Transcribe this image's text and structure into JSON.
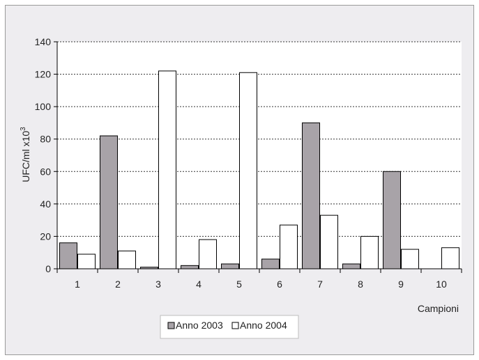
{
  "chart_data": {
    "type": "bar",
    "categories": [
      "1",
      "2",
      "3",
      "4",
      "5",
      "6",
      "7",
      "8",
      "9",
      "10"
    ],
    "series": [
      {
        "name": "Anno 2003",
        "values": [
          16,
          82,
          1,
          2,
          3,
          6,
          90,
          3,
          60,
          0
        ],
        "color": "#a8a3a8"
      },
      {
        "name": "Anno 2004",
        "values": [
          9,
          11,
          122,
          18,
          121,
          27,
          33,
          20,
          12,
          13
        ],
        "color": "#ffffff"
      }
    ],
    "ylim": [
      0,
      140
    ],
    "yticks": [
      0,
      20,
      40,
      60,
      80,
      100,
      120,
      140
    ],
    "ylabel": "UFC/ml x10",
    "ylabel_sup": "3",
    "xlabel": "Campioni",
    "grid": true,
    "legend_position": "bottom"
  }
}
